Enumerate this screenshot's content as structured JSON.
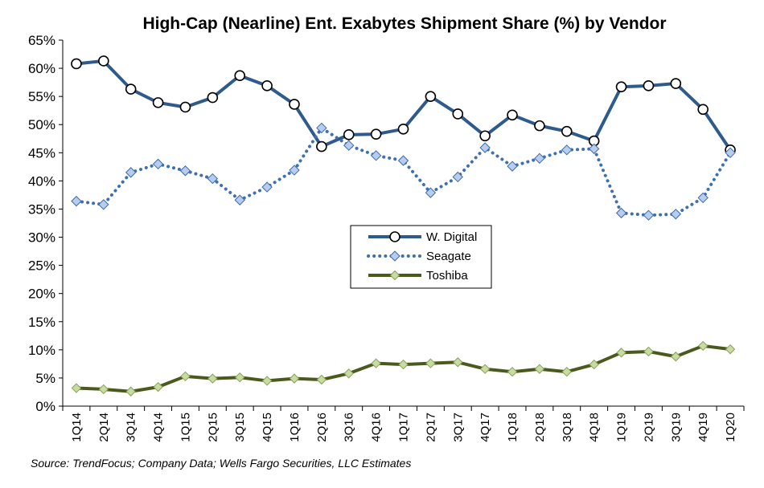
{
  "chart_data": {
    "type": "line",
    "title": "High-Cap (Nearline) Ent. Exabytes Shipment Share (%) by Vendor",
    "xlabel": "",
    "ylabel": "",
    "categories": [
      "1Q14",
      "2Q14",
      "3Q14",
      "4Q14",
      "1Q15",
      "2Q15",
      "3Q15",
      "4Q15",
      "1Q16",
      "2Q16",
      "3Q16",
      "4Q16",
      "1Q17",
      "2Q17",
      "3Q17",
      "4Q17",
      "1Q18",
      "2Q18",
      "3Q18",
      "4Q18",
      "1Q19",
      "2Q19",
      "3Q19",
      "4Q19",
      "1Q20"
    ],
    "ylim": [
      0,
      65
    ],
    "yticks": [
      "0%",
      "5%",
      "10%",
      "15%",
      "20%",
      "25%",
      "30%",
      "35%",
      "40%",
      "45%",
      "50%",
      "55%",
      "60%",
      "65%"
    ],
    "grid": false,
    "legend_position": "center",
    "series": [
      {
        "name": "W. Digital",
        "color": "#2e5b8c",
        "style": "solid",
        "marker": "circle",
        "values": [
          60.8,
          61.3,
          56.3,
          53.9,
          53.1,
          54.8,
          58.7,
          56.9,
          53.6,
          46.1,
          48.2,
          48.3,
          49.2,
          55.0,
          51.9,
          48.0,
          51.7,
          49.8,
          48.8,
          47.1,
          56.7,
          56.9,
          57.3,
          52.7,
          45.5
        ]
      },
      {
        "name": "Seagate",
        "color": "#3e70b0",
        "style": "dotted",
        "marker": "diamond",
        "values": [
          36.4,
          35.8,
          41.5,
          43.0,
          41.8,
          40.4,
          36.6,
          38.9,
          41.9,
          49.4,
          46.3,
          44.5,
          43.6,
          37.9,
          40.7,
          45.9,
          42.6,
          44.0,
          45.5,
          45.7,
          34.3,
          33.9,
          34.1,
          37.0,
          45.0
        ]
      },
      {
        "name": "Toshiba",
        "color": "#4a5a1c",
        "style": "solid",
        "marker": "diamond",
        "values": [
          3.2,
          3.0,
          2.6,
          3.4,
          5.3,
          4.9,
          5.1,
          4.5,
          4.9,
          4.7,
          5.8,
          7.6,
          7.4,
          7.6,
          7.8,
          6.6,
          6.1,
          6.6,
          6.1,
          7.4,
          9.5,
          9.7,
          8.8,
          10.7,
          10.1
        ]
      }
    ],
    "source": "Source:  TrendFocus; Company Data; Wells Fargo Securities, LLC Estimates"
  }
}
